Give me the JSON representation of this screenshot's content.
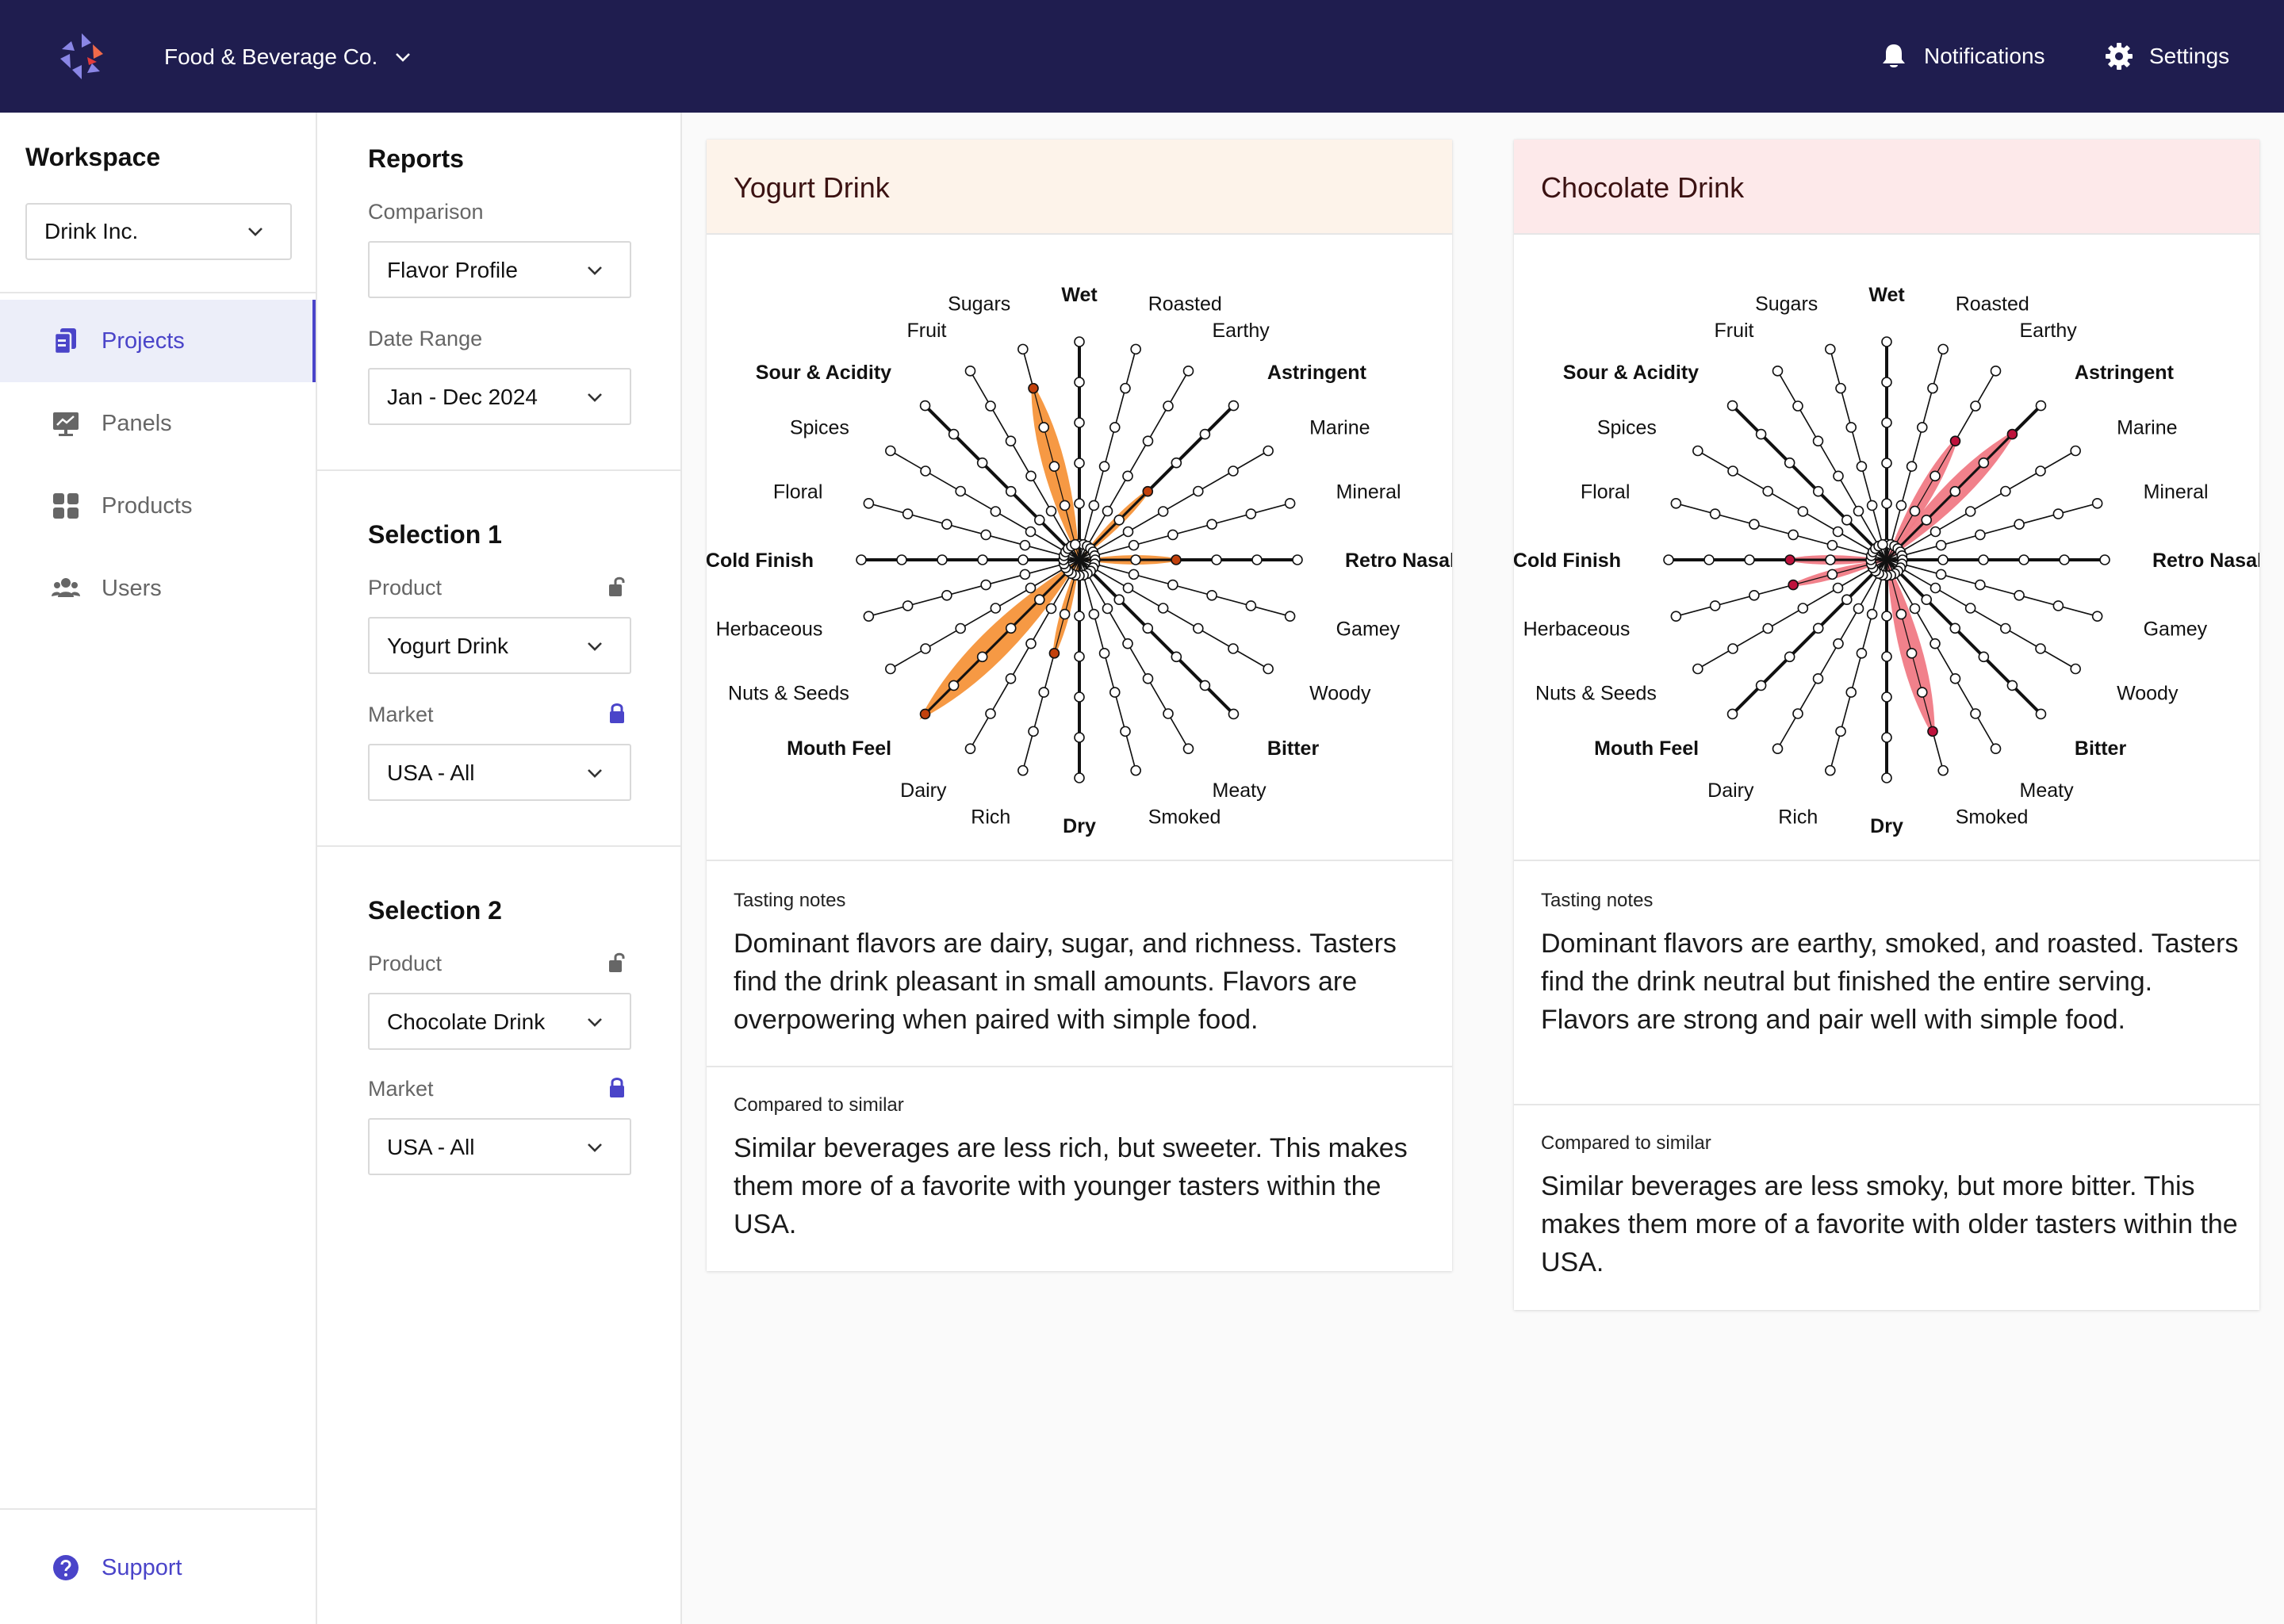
{
  "header": {
    "org_name": "Food & Beverage Co.",
    "notifications_label": "Notifications",
    "settings_label": "Settings"
  },
  "sidebar": {
    "workspace_title": "Workspace",
    "workspace_value": "Drink Inc.",
    "items": [
      {
        "label": "Projects",
        "icon": "projects-icon",
        "active": true
      },
      {
        "label": "Panels",
        "icon": "panels-icon",
        "active": false
      },
      {
        "label": "Products",
        "icon": "products-icon",
        "active": false
      },
      {
        "label": "Users",
        "icon": "users-icon",
        "active": false
      }
    ],
    "support_label": "Support"
  },
  "reports": {
    "title": "Reports",
    "comparison_label": "Comparison",
    "comparison_value": "Flavor Profile",
    "date_range_label": "Date Range",
    "date_range_value": "Jan - Dec 2024",
    "selection1": {
      "title": "Selection 1",
      "product_label": "Product",
      "product_value": "Yogurt Drink",
      "product_locked": false,
      "market_label": "Market",
      "market_value": "USA - All",
      "market_locked": true
    },
    "selection2": {
      "title": "Selection 2",
      "product_label": "Product",
      "product_value": "Chocolate Drink",
      "product_locked": false,
      "market_label": "Market",
      "market_value": "USA - All",
      "market_locked": true
    }
  },
  "cards": [
    {
      "title": "Yogurt Drink",
      "tasting_label": "Tasting notes",
      "tasting_text": "Dominant flavors are dairy, sugar, and richness. Tasters find the drink pleasant in small amounts. Flavors are overpowering when paired with simple food.",
      "compared_label": "Compared to similar",
      "compared_text": "Similar beverages are less rich, but sweeter. This makes them more of a favorite with younger tasters within the USA."
    },
    {
      "title": "Chocolate Drink",
      "tasting_label": "Tasting notes",
      "tasting_text": "Dominant flavors are earthy, smoked, and roasted. Tasters find the drink neutral but finished the entire serving. Flavors are strong and pair well with simple food.",
      "compared_label": "Compared to similar",
      "compared_text": "Similar beverages are less smoky, but more bitter. This makes them more of a favorite with older tasters within the USA."
    }
  ],
  "chart_data": [
    {
      "type": "radar",
      "title": "Yogurt Drink",
      "max": 5,
      "fill_color": "#f5943a",
      "marker_color": "#c2410c",
      "categories": [
        "Wet",
        "Roasted",
        "Earthy",
        "Astringent",
        "Marine",
        "Mineral",
        "Retro Nasal",
        "Gamey",
        "Woody",
        "Bitter",
        "Meaty",
        "Smoked",
        "Dry",
        "Rich",
        "Dairy",
        "Mouth Feel",
        "Nuts & Seeds",
        "Herbaceous",
        "Cold Finish",
        "Floral",
        "Spices",
        "Sour & Acidity",
        "Fruit",
        "Sugars"
      ],
      "values": [
        1,
        1,
        1,
        2,
        1,
        1,
        2,
        1,
        1,
        1,
        1,
        1,
        1,
        2,
        1,
        5,
        1,
        1,
        1,
        1,
        1,
        1,
        1,
        4
      ]
    },
    {
      "type": "radar",
      "title": "Chocolate Drink",
      "max": 5,
      "fill_color": "#f07a85",
      "marker_color": "#be123c",
      "categories": [
        "Wet",
        "Roasted",
        "Earthy",
        "Astringent",
        "Marine",
        "Mineral",
        "Retro Nasal",
        "Gamey",
        "Woody",
        "Bitter",
        "Meaty",
        "Smoked",
        "Dry",
        "Rich",
        "Dairy",
        "Mouth Feel",
        "Nuts & Seeds",
        "Herbaceous",
        "Cold Finish",
        "Floral",
        "Spices",
        "Sour & Acidity",
        "Fruit",
        "Sugars"
      ],
      "values": [
        1,
        1,
        3,
        4,
        1,
        1,
        1,
        1,
        1,
        1,
        1,
        4,
        1,
        1,
        1,
        1,
        1,
        2,
        2,
        1,
        1,
        1,
        1,
        1
      ]
    }
  ],
  "colors": {
    "header_bg": "#1f1d4f",
    "accent": "#4a44c9",
    "yogurt_head_bg": "#fdf3ea",
    "chocolate_head_bg": "#fde9ea"
  }
}
